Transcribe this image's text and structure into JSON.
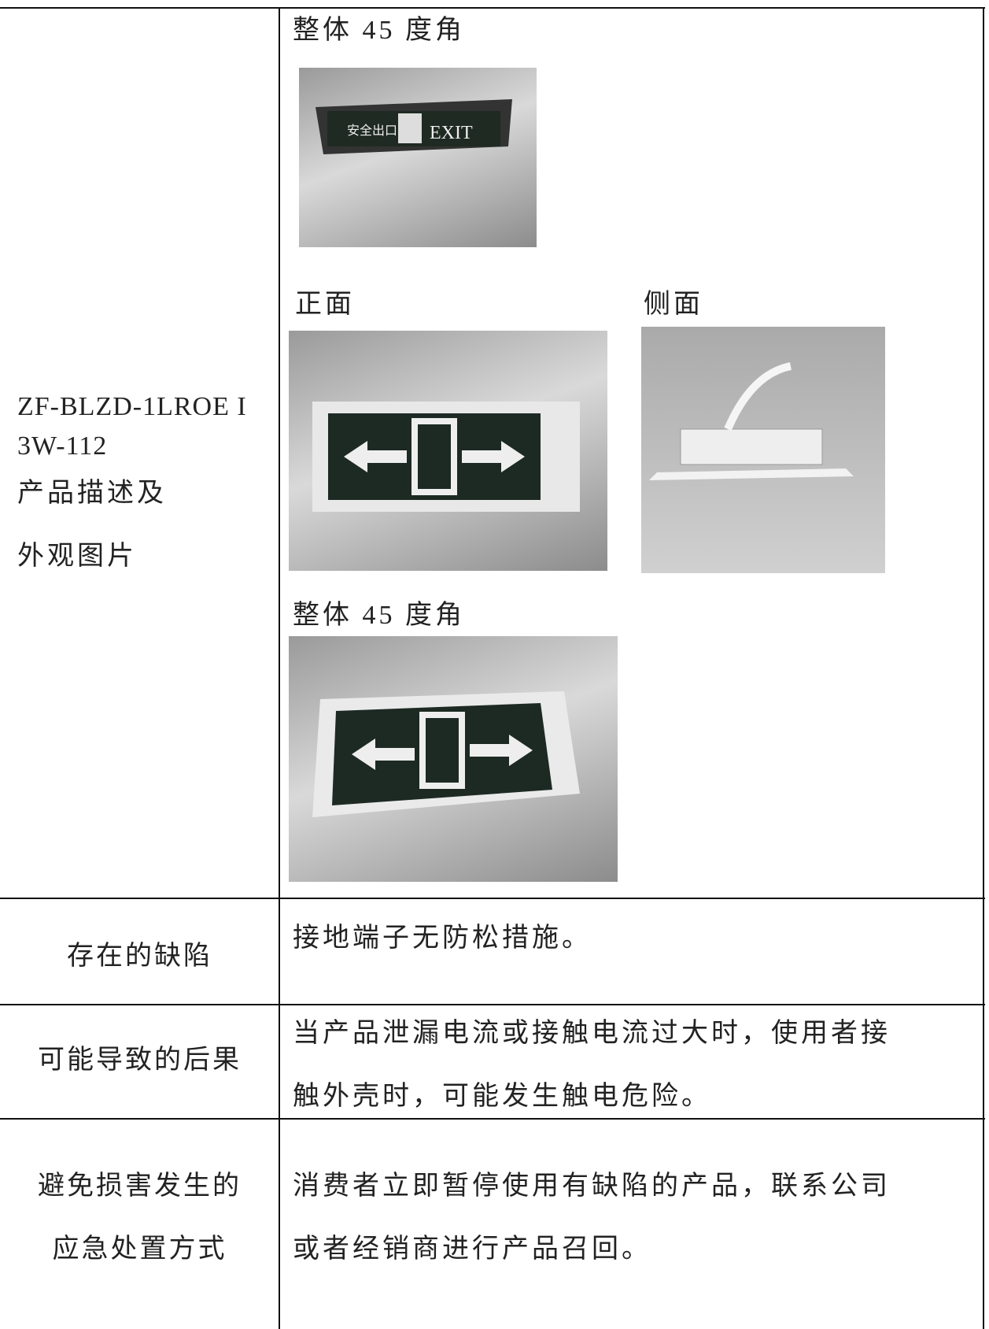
{
  "table": {
    "rows": [
      {
        "label_lines": [
          "ZF-BLZD-1LROE I",
          "3W-112",
          "产品描述及",
          "外观图片"
        ],
        "photo_captions": [
          "整体 45 度角",
          "正面",
          "侧面",
          "整体 45 度角"
        ]
      },
      {
        "label_lines": [
          "存在的缺陷"
        ],
        "text_lines": [
          "接地端子无防松措施。"
        ]
      },
      {
        "label_lines": [
          "可能导致的后果"
        ],
        "text_lines": [
          "当产品泄漏电流或接触电流过大时，使用者接",
          "触外壳时，可能发生触电危险。"
        ]
      },
      {
        "label_lines": [
          "避免损害发生的",
          "应急处置方式"
        ],
        "text_lines": [
          "消费者立即暂停使用有缺陷的产品，联系公司",
          "或者经销商进行产品召回。"
        ]
      }
    ]
  }
}
